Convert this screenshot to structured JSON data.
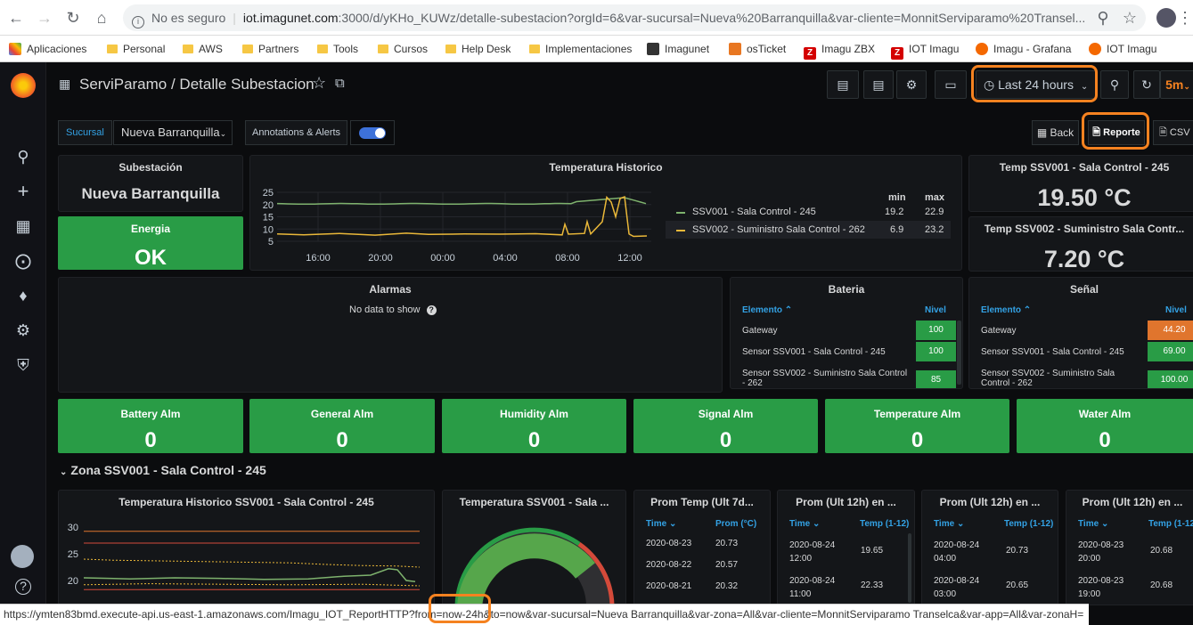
{
  "browser": {
    "not_secure": "No es seguro",
    "url_host": "iot.imagunet.com",
    "url_rest": ":3000/d/yKHo_KUWz/detalle-subestacion?orgId=6&var-sucursal=Nueva%20Barranquilla&var-cliente=MonnitServiparamo%20Transel...",
    "bookmarks": [
      "Aplicaciones",
      "Personal",
      "AWS",
      "Partners",
      "Tools",
      "Cursos",
      "Help Desk",
      "Implementaciones",
      "Imagunet",
      "osTicket",
      "Imagu ZBX",
      "IOT Imagu",
      "Imagu - Grafana",
      "IOT Imagu"
    ],
    "status_url": "https://ymten83bmd.execute-api.us-east-1.amazonaws.com/Imagu_IOT_ReportHTTP?from=now-24h&to=now&var-sucursal=Nueva Barranquilla&var-zona=All&var-cliente=MonnitServiparamo Transelca&var-app=All&var-zonaH="
  },
  "dashboard": {
    "title": "ServiParamo / Detalle Subestacion",
    "time_range": "Last 24 hours",
    "refresh": "5m"
  },
  "vars": {
    "sucursal_label": "Sucursal",
    "sucursal_value": "Nueva Barranquilla",
    "annotations_label": "Annotations & Alerts"
  },
  "links": {
    "back": "Back",
    "reporte": "Reporte",
    "csv": "CSV"
  },
  "panels": {
    "subestacion": {
      "title": "Subestación",
      "value": "Nueva Barranquilla"
    },
    "energia": {
      "title": "Energia",
      "value": "OK"
    },
    "temp_hist": {
      "title": "Temperatura Historico",
      "legend_min": "min",
      "legend_max": "max",
      "series": [
        {
          "name": "SSV001 - Sala Control - 245",
          "min": "19.2",
          "max": "22.9",
          "color": "#7eb26d"
        },
        {
          "name": "SSV002 - Suministro Sala Control - 262",
          "min": "6.9",
          "max": "23.2",
          "color": "#eab839"
        }
      ],
      "y_ticks": [
        "25",
        "20",
        "15",
        "10",
        "5"
      ],
      "x_ticks": [
        "16:00",
        "20:00",
        "00:00",
        "04:00",
        "08:00",
        "12:00"
      ]
    },
    "temp1": {
      "title": "Temp SSV001 - Sala Control - 245",
      "value": "19.50 °C"
    },
    "temp2": {
      "title": "Temp SSV002 - Suministro Sala Contr...",
      "value": "7.20 °C"
    },
    "alarmas": {
      "title": "Alarmas",
      "empty": "No data to show"
    },
    "bateria": {
      "title": "Bateria",
      "col1": "Elemento",
      "col2": "Nivel",
      "rows": [
        {
          "el": "Gateway",
          "v": "100",
          "color": "#299c46"
        },
        {
          "el": "Sensor SSV001 - Sala Control - 245",
          "v": "100",
          "color": "#299c46"
        },
        {
          "el": "Sensor SSV002 - Suministro Sala Control - 262",
          "v": "85",
          "color": "#299c46"
        }
      ]
    },
    "senal": {
      "title": "Señal",
      "col1": "Elemento",
      "col2": "Nivel",
      "rows": [
        {
          "el": "Gateway",
          "v": "44.20",
          "color": "#e0752d"
        },
        {
          "el": "Sensor SSV001 - Sala Control - 245",
          "v": "69.00",
          "color": "#299c46"
        },
        {
          "el": "Sensor SSV002 - Suministro Sala Control - 262",
          "v": "100.00",
          "color": "#299c46"
        }
      ]
    },
    "alarms": [
      {
        "title": "Battery Alm",
        "value": "0"
      },
      {
        "title": "General Alm",
        "value": "0"
      },
      {
        "title": "Humidity Alm",
        "value": "0"
      },
      {
        "title": "Signal Alm",
        "value": "0"
      },
      {
        "title": "Temperature Alm",
        "value": "0"
      },
      {
        "title": "Water Alm",
        "value": "0"
      }
    ],
    "row_title": "Zona SSV001 - Sala Control - 245",
    "zone_hist": {
      "title": "Temperatura Historico SSV001 - Sala Control - 245",
      "y_ticks": [
        "30",
        "25",
        "20"
      ]
    },
    "gauge": {
      "title": "Temperatura SSV001 - Sala ..."
    },
    "tables": [
      {
        "title": "Prom Temp (Ult 7d...",
        "c1": "Time",
        "c2": "Prom (°C)",
        "rows": [
          [
            "2020-08-23",
            "20.73"
          ],
          [
            "2020-08-22",
            "20.57"
          ],
          [
            "2020-08-21",
            "20.32"
          ]
        ]
      },
      {
        "title": "Prom (Ult 12h) en ...",
        "c1": "Time",
        "c2": "Temp (1-12)",
        "rows": [
          [
            "2020-08-24 12:00",
            "19.65"
          ],
          [
            "2020-08-24 11:00",
            "22.33"
          ]
        ]
      },
      {
        "title": "Prom (Ult 12h) en ...",
        "c1": "Time",
        "c2": "Temp (1-12)",
        "rows": [
          [
            "2020-08-24 04:00",
            "20.73"
          ],
          [
            "2020-08-24 03:00",
            "20.65"
          ]
        ]
      },
      {
        "title": "Prom (Ult 12h) en ...",
        "c1": "Time",
        "c2": "Temp (1-12)",
        "rows": [
          [
            "2020-08-23 20:00",
            "20.68"
          ],
          [
            "2020-08-23 19:00",
            "20.68"
          ]
        ]
      }
    ]
  }
}
